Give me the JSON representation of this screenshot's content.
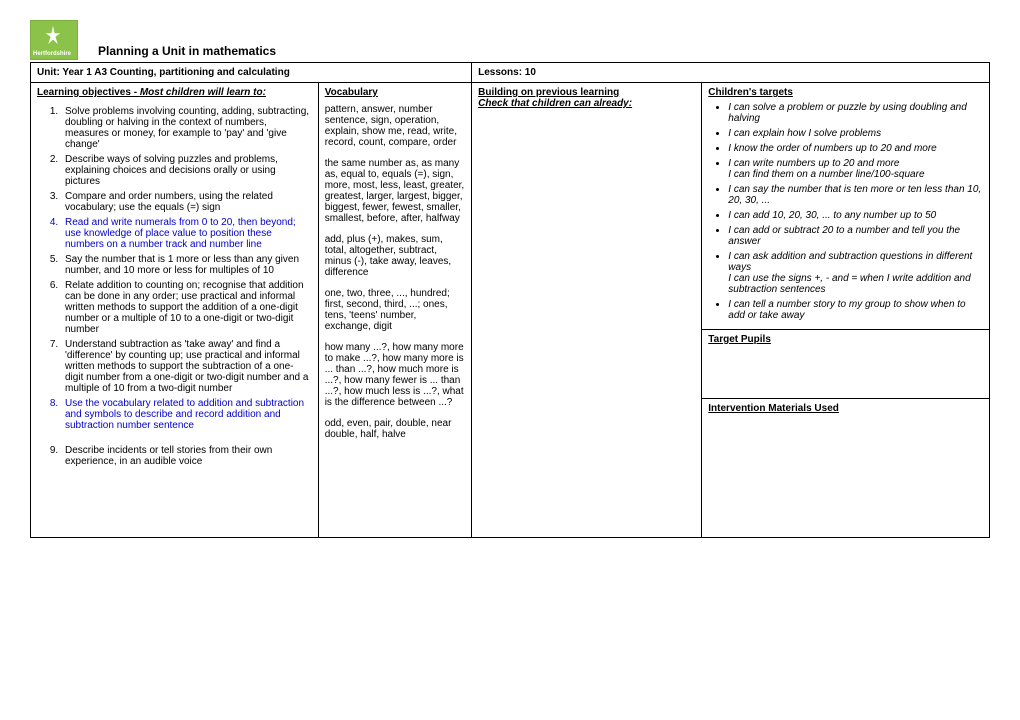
{
  "logo_text": "Hertfordshire",
  "page_title": "Planning a Unit in mathematics",
  "header": {
    "unit": "Unit: Year 1 A3 Counting, partitioning and calculating",
    "lessons": "Lessons: 10"
  },
  "objectives": {
    "heading_bold": "Learning objectives - ",
    "heading_italic": "Most children will learn to:",
    "items": [
      {
        "text": "Solve problems involving counting, adding, subtracting, doubling or halving in the context of numbers, measures or money, for example to 'pay' and 'give change'",
        "blue": false
      },
      {
        "text": "Describe ways of solving puzzles and problems, explaining choices and decisions orally or using pictures",
        "blue": false
      },
      {
        "text": "Compare and order numbers, using the related vocabulary; use the equals (=) sign",
        "blue": false
      },
      {
        "text": "Read and write numerals from 0 to 20, then beyond; use knowledge of place value to position these numbers on a number track and number line",
        "blue": true
      },
      {
        "text": "Say the number that is 1 more or less than any given number, and 10 more or less for multiples of 10",
        "blue": false
      },
      {
        "text": "Relate addition to counting on; recognise that addition can be done in any order; use practical and informal written methods to support the addition of a one-digit number or a multiple of 10 to a one-digit or two-digit number",
        "blue": false
      },
      {
        "text": "Understand subtraction as 'take away' and find a 'difference' by counting up; use practical and informal written methods to support the subtraction of a one-digit number from a one-digit or two-digit number and a multiple of 10 from a two-digit number",
        "blue": false
      },
      {
        "text": "Use the vocabulary related to addition and subtraction and symbols to describe and record addition and subtraction number sentence",
        "blue": true
      },
      {
        "text": "Describe incidents or tell stories from their own experience, in an audible voice",
        "blue": false
      }
    ]
  },
  "vocab": {
    "heading": "Vocabulary",
    "p1": "pattern, answer, number sentence, sign, operation, explain, show me, read, write, record, count, compare, order",
    "p2": "the same number as, as many as, equal to, equals (=), sign, more, most, less, least, greater, greatest, larger, largest, bigger, biggest, fewer, fewest, smaller, smallest, before, after, halfway",
    "p3": "add, plus (+), makes, sum, total, altogether, subtract, minus (-), take away, leaves, difference",
    "p4": "one, two, three, ..., hundred; first, second, third, ...; ones, tens, 'teens' number, exchange, digit",
    "p5": "how many ...?, how many more to make ...?, how many more is ... than ...?, how much more is ...?, how many fewer is ... than ...?, how much less is ...?, what is the difference between ...?",
    "p6": "odd, even, pair, double, near double, half, halve"
  },
  "building": {
    "heading": "Building on previous learning",
    "sub": "Check that children can already:"
  },
  "targets": {
    "heading": "Children's targets",
    "items": [
      "I can solve a problem or puzzle by using doubling and halving",
      "I can explain how I solve problems",
      "I know the order of numbers up to 20 and more",
      "I can write numbers up to 20 and more\nI can find them on a number line/100-square",
      "I can say the number that is ten more or ten less than 10, 20, 30, ...",
      "I can add 10, 20, 30, ... to any number up to 50",
      "I can add or subtract 20 to a number and tell you the answer",
      "I can ask addition and subtraction questions in different ways\nI can use the signs +, - and = when I write addition and subtraction sentences",
      "I can tell a number story to my group to show when to add or take away"
    ]
  },
  "target_pupils": "Target Pupils",
  "intervention": "Intervention Materials Used"
}
